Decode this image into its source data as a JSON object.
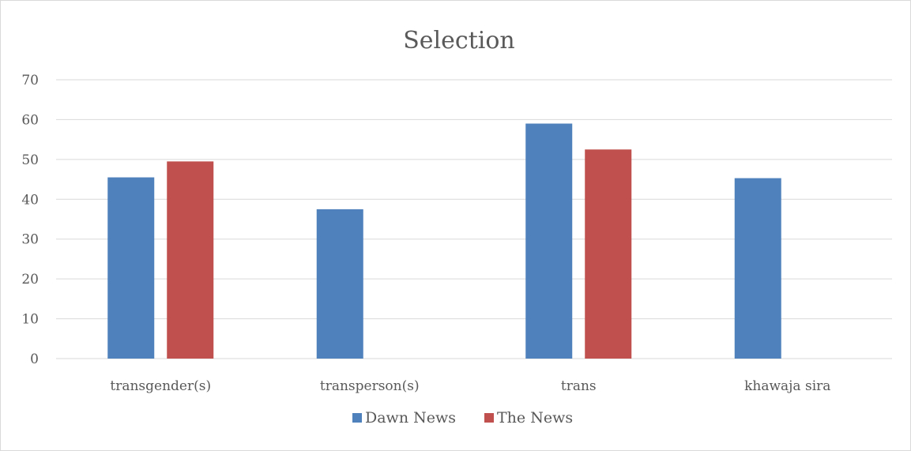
{
  "chart_data": {
    "type": "bar",
    "title": "Selection",
    "categories": [
      "transgender(s)",
      "transperson(s)",
      "trans",
      "khawaja sira"
    ],
    "series": [
      {
        "name": "Dawn News",
        "values": [
          45.5,
          37.5,
          59,
          45.3
        ],
        "color": "#4f81bd"
      },
      {
        "name": "The News",
        "values": [
          49.5,
          null,
          52.5,
          null
        ],
        "color": "#c0504d"
      }
    ],
    "ylim": [
      0,
      70
    ],
    "yticks": [
      0,
      10,
      20,
      30,
      40,
      50,
      60,
      70
    ],
    "grid": true,
    "legend_position": "bottom"
  }
}
